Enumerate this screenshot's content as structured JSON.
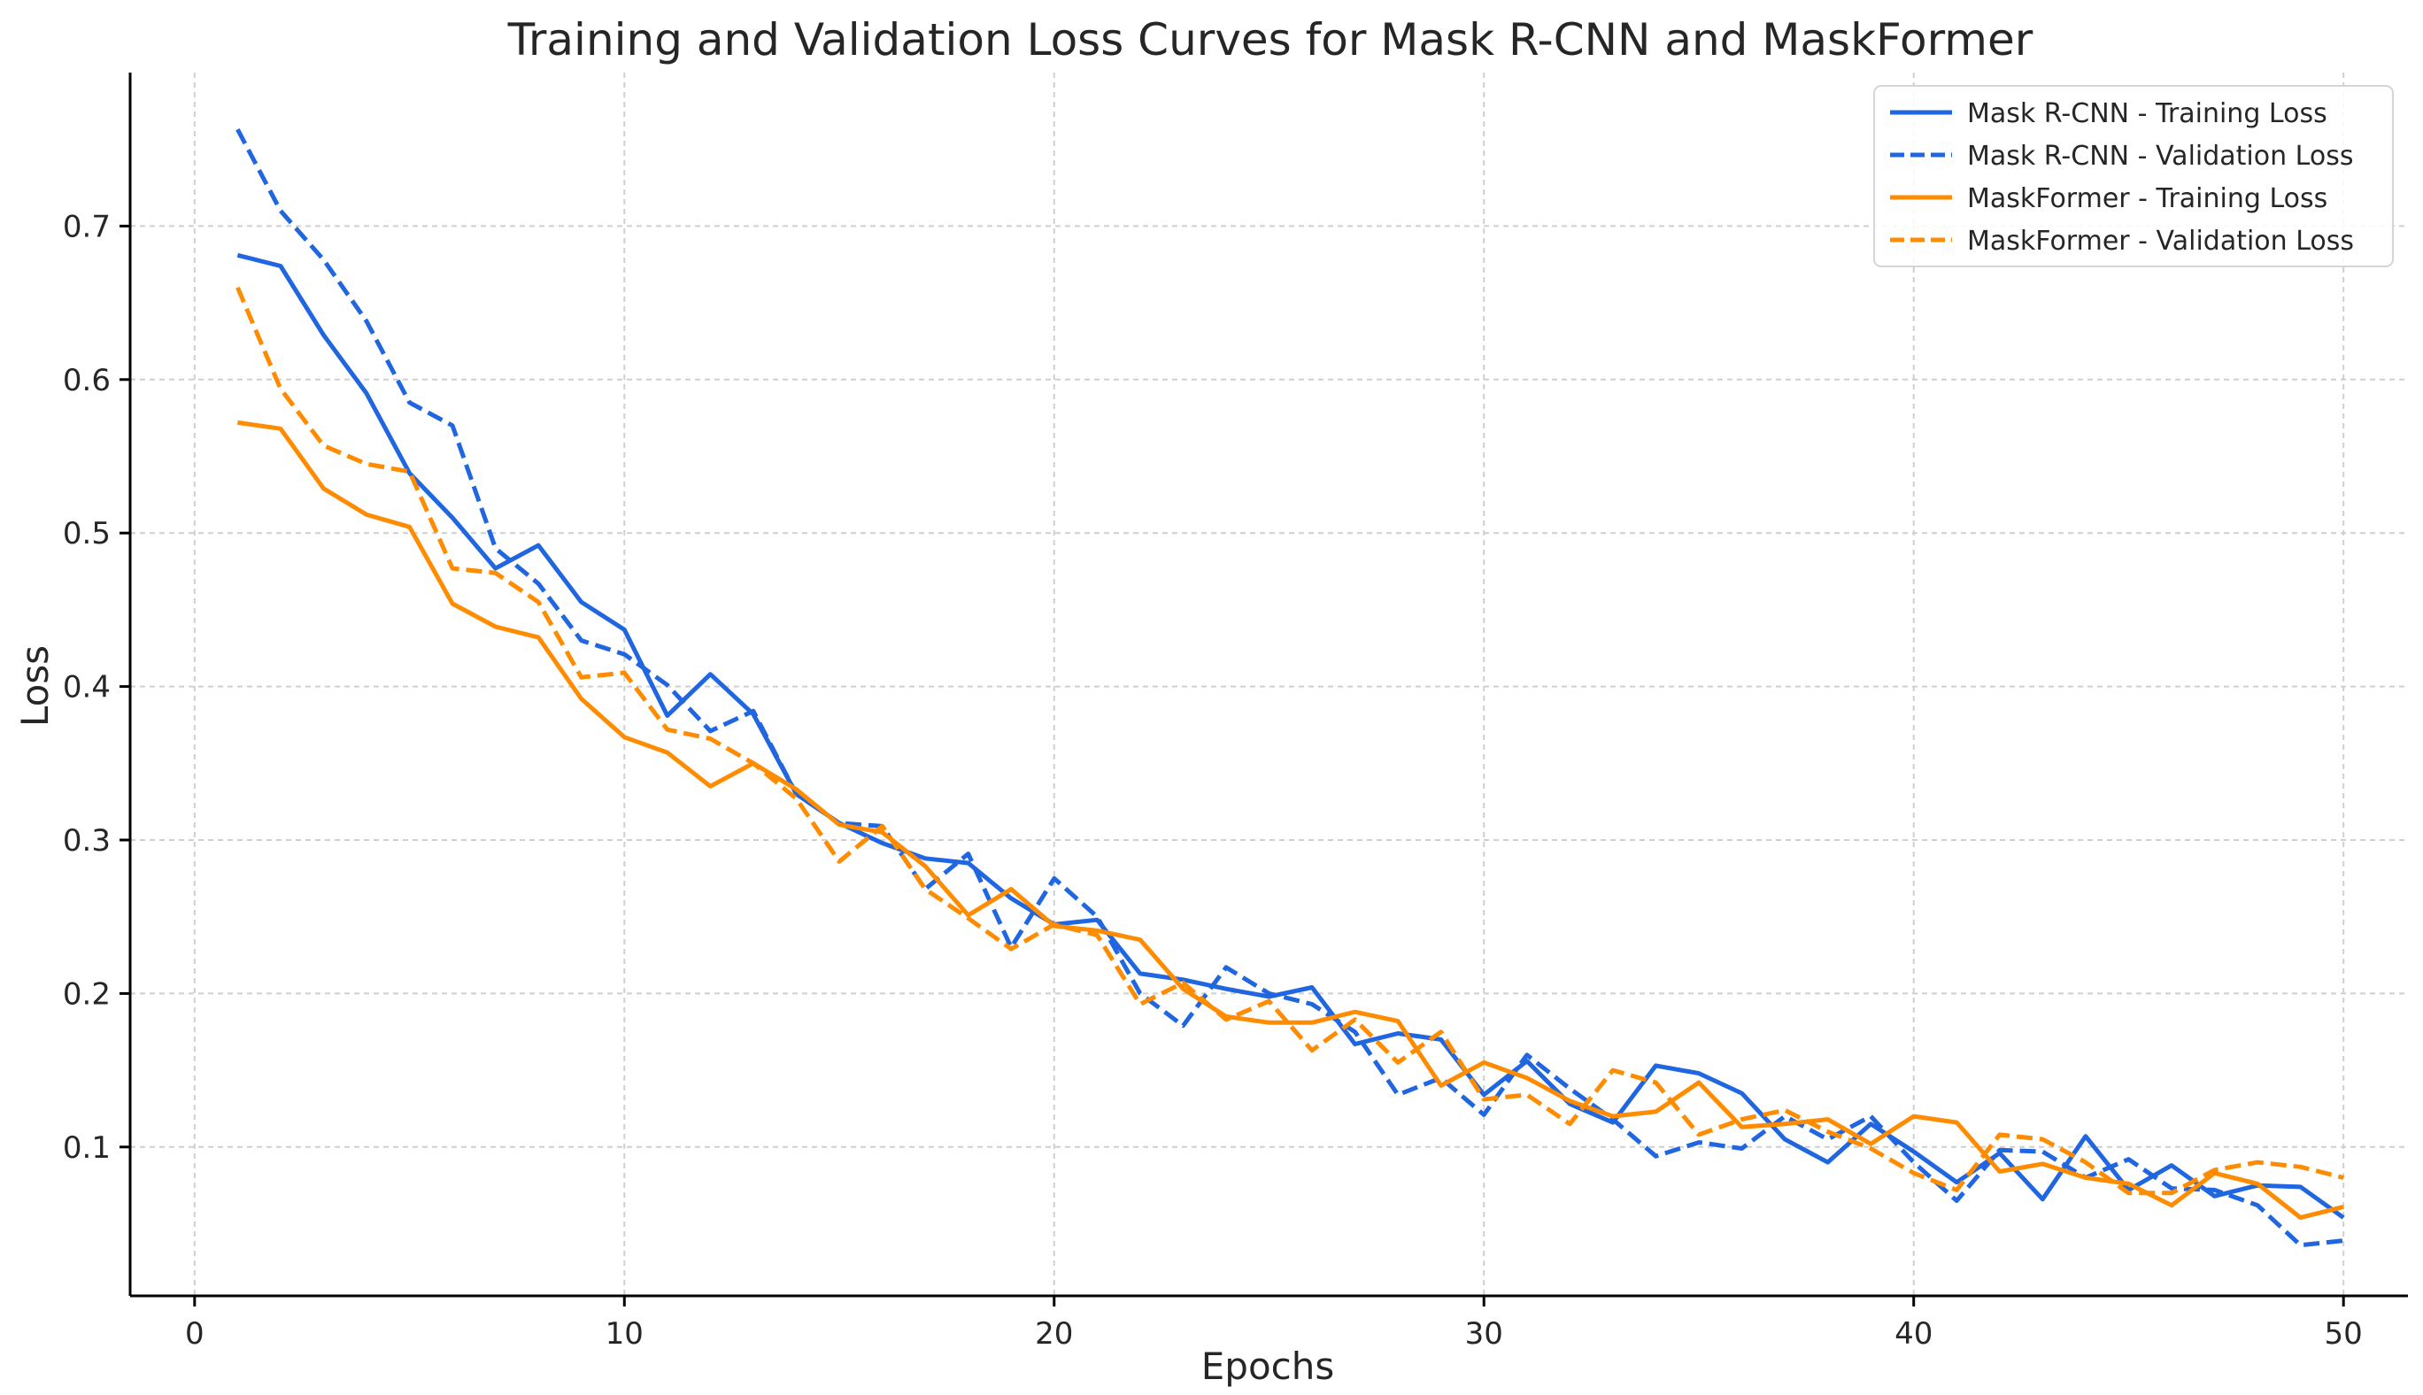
{
  "chart_data": {
    "type": "line",
    "title": "Training and Validation Loss Curves for Mask R-CNN and MaskFormer",
    "xlabel": "Epochs",
    "ylabel": "Loss",
    "xlim": [
      -1.5,
      51.5
    ],
    "ylim": [
      0.003,
      0.8
    ],
    "grid": true,
    "legend_position": "top-right",
    "x_ticks": [
      0,
      10,
      20,
      30,
      40,
      50
    ],
    "x_tick_labels": [
      "0",
      "10",
      "20",
      "30",
      "40",
      "50"
    ],
    "y_ticks": [
      0.1,
      0.2,
      0.3,
      0.4,
      0.5,
      0.6,
      0.7
    ],
    "y_tick_labels": [
      "0.1",
      "0.2",
      "0.3",
      "0.4",
      "0.5",
      "0.6",
      "0.7"
    ],
    "x": [
      1,
      2,
      3,
      4,
      5,
      6,
      7,
      8,
      9,
      10,
      11,
      12,
      13,
      14,
      15,
      16,
      17,
      18,
      19,
      20,
      21,
      22,
      23,
      24,
      25,
      26,
      27,
      28,
      29,
      30,
      31,
      32,
      33,
      34,
      35,
      36,
      37,
      38,
      39,
      40,
      41,
      42,
      43,
      44,
      45,
      46,
      47,
      48,
      49,
      50
    ],
    "series": [
      {
        "name": "Mask R-CNN - Training Loss",
        "color": "#1f66e0",
        "style": "solid",
        "values": [
          0.681,
          0.674,
          0.629,
          0.591,
          0.539,
          0.51,
          0.477,
          0.492,
          0.455,
          0.437,
          0.381,
          0.408,
          0.382,
          0.33,
          0.311,
          0.298,
          0.288,
          0.285,
          0.262,
          0.245,
          0.248,
          0.213,
          0.209,
          0.203,
          0.198,
          0.204,
          0.167,
          0.174,
          0.17,
          0.134,
          0.156,
          0.128,
          0.116,
          0.153,
          0.148,
          0.135,
          0.105,
          0.09,
          0.115,
          0.097,
          0.077,
          0.096,
          0.066,
          0.107,
          0.072,
          0.088,
          0.068,
          0.075,
          0.074,
          0.054
        ]
      },
      {
        "name": "Mask R-CNN - Validation Loss",
        "color": "#1f66e0",
        "style": "dashed",
        "values": [
          0.763,
          0.71,
          0.678,
          0.638,
          0.585,
          0.57,
          0.49,
          0.467,
          0.43,
          0.421,
          0.401,
          0.371,
          0.384,
          0.33,
          0.311,
          0.309,
          0.268,
          0.291,
          0.23,
          0.275,
          0.25,
          0.2,
          0.179,
          0.217,
          0.2,
          0.193,
          0.175,
          0.134,
          0.145,
          0.121,
          0.16,
          0.138,
          0.118,
          0.094,
          0.103,
          0.099,
          0.12,
          0.105,
          0.12,
          0.09,
          0.065,
          0.098,
          0.097,
          0.08,
          0.092,
          0.073,
          0.072,
          0.062,
          0.036,
          0.039
        ]
      },
      {
        "name": "MaskFormer - Training Loss",
        "color": "#ff8c00",
        "style": "solid",
        "values": [
          0.572,
          0.568,
          0.529,
          0.512,
          0.504,
          0.454,
          0.439,
          0.432,
          0.392,
          0.367,
          0.357,
          0.335,
          0.35,
          0.333,
          0.31,
          0.305,
          0.283,
          0.251,
          0.268,
          0.244,
          0.241,
          0.235,
          0.203,
          0.185,
          0.181,
          0.181,
          0.188,
          0.182,
          0.14,
          0.155,
          0.145,
          0.13,
          0.12,
          0.123,
          0.142,
          0.113,
          0.115,
          0.118,
          0.102,
          0.12,
          0.116,
          0.084,
          0.089,
          0.08,
          0.076,
          0.062,
          0.083,
          0.076,
          0.054,
          0.061
        ]
      },
      {
        "name": "MaskFormer - Validation Loss",
        "color": "#ff8c00",
        "style": "dashed",
        "values": [
          0.66,
          0.594,
          0.557,
          0.545,
          0.54,
          0.477,
          0.474,
          0.455,
          0.406,
          0.409,
          0.372,
          0.366,
          0.35,
          0.327,
          0.286,
          0.309,
          0.268,
          0.249,
          0.229,
          0.245,
          0.238,
          0.193,
          0.207,
          0.183,
          0.195,
          0.163,
          0.183,
          0.155,
          0.175,
          0.131,
          0.134,
          0.115,
          0.15,
          0.142,
          0.108,
          0.118,
          0.124,
          0.11,
          0.099,
          0.083,
          0.072,
          0.108,
          0.105,
          0.09,
          0.07,
          0.07,
          0.085,
          0.09,
          0.087,
          0.08
        ]
      }
    ]
  }
}
